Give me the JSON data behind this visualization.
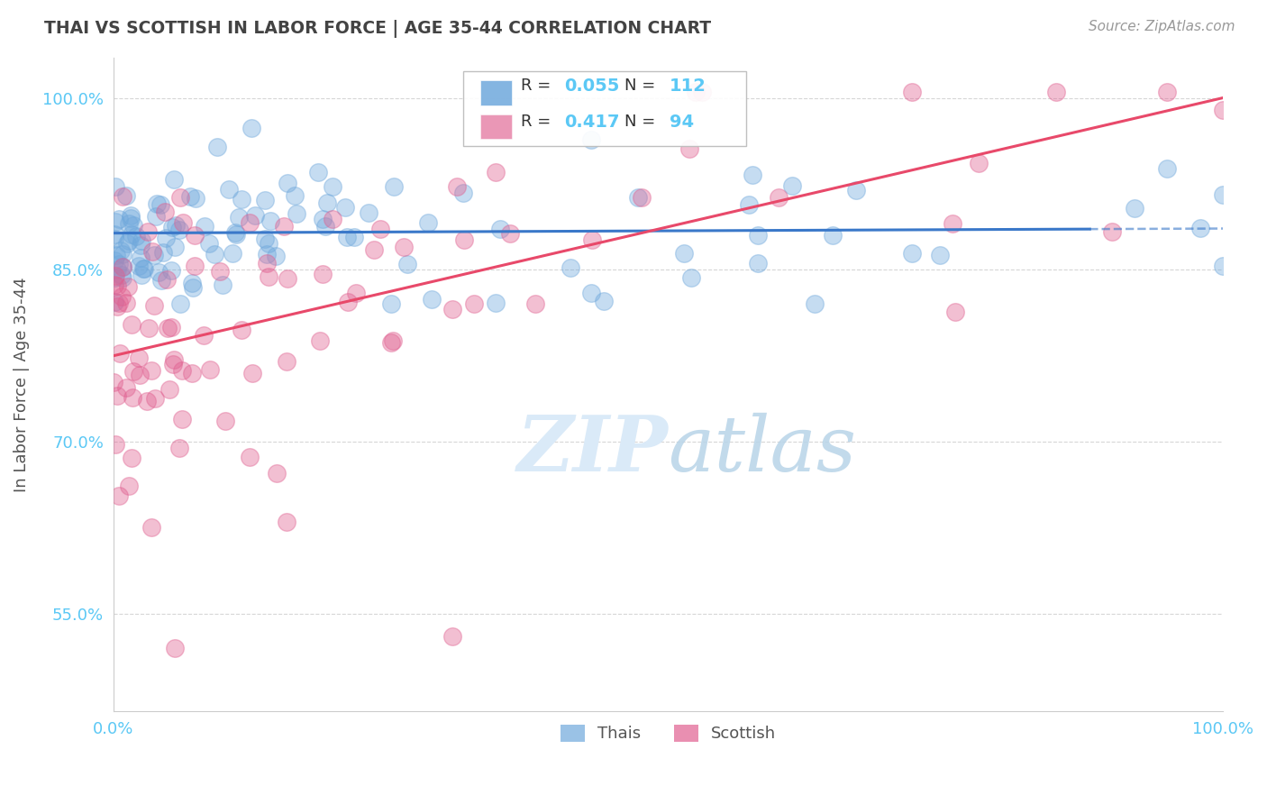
{
  "title": "THAI VS SCOTTISH IN LABOR FORCE | AGE 35-44 CORRELATION CHART",
  "source": "Source: ZipAtlas.com",
  "ylabel_text": "In Labor Force | Age 35-44",
  "xlim": [
    0.0,
    1.0
  ],
  "ylim": [
    0.465,
    1.035
  ],
  "yticks": [
    0.55,
    0.7,
    0.85,
    1.0
  ],
  "ytick_labels": [
    "55.0%",
    "70.0%",
    "85.0%",
    "100.0%"
  ],
  "xtick_labels": [
    "0.0%",
    "100.0%"
  ],
  "thai_color": "#6fa8dc",
  "scottish_color": "#e06090",
  "thai_R": 0.055,
  "thai_N": 112,
  "scottish_R": 0.417,
  "scottish_N": 94,
  "legend_thais": "Thais",
  "legend_scottish": "Scottish",
  "background_color": "#ffffff",
  "grid_color": "#cccccc",
  "title_color": "#434343",
  "source_color": "#999999",
  "label_color": "#555555",
  "tick_color": "#5bc8f5",
  "regression_blue_color": "#3a78c9",
  "regression_pink_color": "#e8496a",
  "watermark_color": "#daeaf8",
  "thai_regression_intercept": 0.882,
  "thai_regression_slope": 0.004,
  "thai_regression_solid_end": 0.88,
  "scot_regression_intercept": 0.775,
  "scot_regression_slope": 0.225
}
